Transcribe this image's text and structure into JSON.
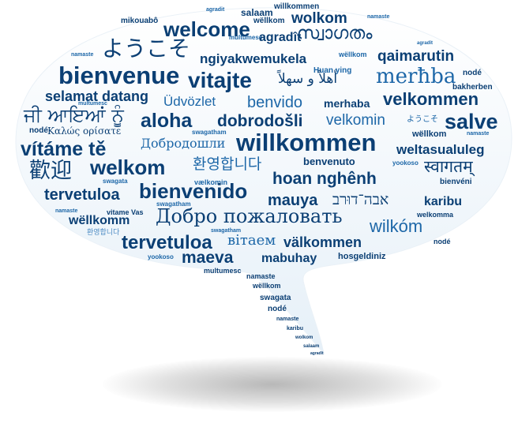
{
  "image": {
    "description_free": true,
    "colors": {
      "bubble_top": "#ffffff",
      "bubble_bottom": "#e6f0f8",
      "text_dark": "#0b3f74",
      "text_mid": "#1d67a8",
      "text_light": "#4d8cc4"
    }
  },
  "words": {
    "agradit_top": "agradit",
    "willkommen_top": "willkommen",
    "salaam_top": "salaam",
    "mikouabo": "mikouabô",
    "wellkom_top": "wëllkom",
    "wolkom_top": "wolkom",
    "namaste_top": "namaste",
    "welcome": "welcome",
    "multumesc_top": "multumesc",
    "agradit_big": "agradît",
    "malayalam": "സ്വാഗതം",
    "agradit_tiny": "agradît",
    "namaste_left": "namaste",
    "japanese_big": "ようこそ",
    "ngiyakwemukela": "ngiyakwemukela",
    "wellkom_mid": "wëllkom",
    "qaimarutin": "qaimarutin",
    "node_right1": "nodé",
    "huan_ying": "Huan ying",
    "bienvenue": "bienvenue",
    "vitajte": "vitajte",
    "arabic": "أهلاً و سهلاً",
    "merhba": "merħba",
    "bakherben": "bakherben",
    "selamat_datang": "selamat datang",
    "udvozlet": "Üdvözlet",
    "benvido": "benvido",
    "merhaba": "merhaba",
    "velkommen_top": "velkommen",
    "multumesc_left": "multumesc",
    "punjabi": "ਜੀ ਆਇਆਂ ਨੂੰ",
    "aloha": "aloha",
    "dobrodosli": "dobrodošli",
    "velkomin": "velkomin",
    "japanese_small": "ようこそ",
    "salve": "salve",
    "node_left": "nodé",
    "greek": "Καλώς ορίσατε",
    "swagatham_mid": "swagatham",
    "willkommen_big": "willkommen",
    "wellkom_right": "wëllkom",
    "namaste_right": "namaste",
    "vitame_te": "vítáme tě",
    "russian_small": "Добродошли",
    "weltasualuleg": "weltasualuleg",
    "chinese": "歡迎",
    "welkom_mid": "welkom",
    "korean_mid": "환영합니다",
    "benvenuto": "benvenuto",
    "yookoso_mid": "yookoso",
    "hindi": "स्वागतम्",
    "swagata_left": "swagata",
    "vaelkomin_mid": "vælkomin",
    "hoan_nghenh": "hoan nghênh",
    "bienveni": "bienvéni",
    "tervetuloa_top": "tervetuloa",
    "bienvenido": "bienvenido",
    "mauya": "mauya",
    "hebrew": "אבה־דוּרב",
    "karibu_right": "karibu",
    "namaste_left2": "namaste",
    "vitamme_vas": "vitame Vas",
    "swagatham_lower": "swagatham",
    "welkomma": "welkomma",
    "wellkomm": "wëllkomm",
    "russian_big": "Добро пожаловать",
    "wilkom": "wilkóm",
    "korean_small": "환영합니다",
    "swagatham_small": "swagatham",
    "tervetuloa_big": "tervetuloa",
    "vitaem": "вітаем",
    "valkommen": "välkommen",
    "node_right2": "nodé",
    "yookoso_low": "yookoso",
    "maeva": "maeva",
    "mabuhay": "mabuhay",
    "hosgeldiniz": "hosgeldiniz",
    "multumesc_low": "multumesc",
    "tail_namaste": "namaste",
    "tail_wellkom": "wëllkom",
    "tail_swagata": "swagata",
    "tail_node": "nodé",
    "tail_namaste2": "namaste",
    "tail_karibu": "karibu",
    "tail_wolkom": "wolkom",
    "tail_salaam": "salaam",
    "tail_agradit": "agradît"
  }
}
